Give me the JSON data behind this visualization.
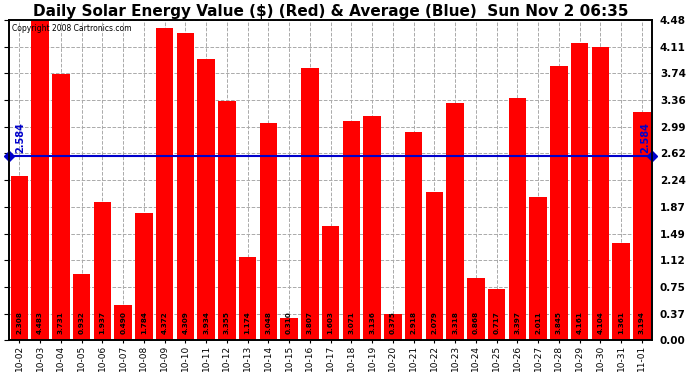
{
  "title": "Daily Solar Energy Value ($) (Red) & Average (Blue)  Sun Nov 2 06:35",
  "copyright": "Copyright 2008 Cartronics.com",
  "categories": [
    "10-02",
    "10-03",
    "10-04",
    "10-05",
    "10-06",
    "10-07",
    "10-08",
    "10-09",
    "10-10",
    "10-11",
    "10-12",
    "10-13",
    "10-14",
    "10-15",
    "10-16",
    "10-17",
    "10-18",
    "10-19",
    "10-20",
    "10-21",
    "10-22",
    "10-23",
    "10-24",
    "10-25",
    "10-26",
    "10-27",
    "10-28",
    "10-29",
    "10-30",
    "10-31",
    "11-01"
  ],
  "values": [
    2.308,
    4.483,
    3.731,
    0.932,
    1.937,
    0.49,
    1.784,
    4.372,
    4.309,
    3.934,
    3.355,
    1.174,
    3.048,
    0.31,
    3.807,
    1.603,
    3.071,
    3.136,
    0.375,
    2.918,
    2.079,
    3.318,
    0.868,
    0.717,
    3.397,
    2.011,
    3.845,
    4.161,
    4.104,
    1.361,
    3.194
  ],
  "average": 2.584,
  "bar_color": "#ff0000",
  "avg_line_color": "#0000cc",
  "background_color": "#ffffff",
  "plot_bg_color": "#ffffff",
  "title_fontsize": 11,
  "ylim": [
    0,
    4.48
  ],
  "yticks": [
    0.0,
    0.37,
    0.75,
    1.12,
    1.49,
    1.87,
    2.24,
    2.62,
    2.99,
    3.36,
    3.74,
    4.11,
    4.48
  ]
}
